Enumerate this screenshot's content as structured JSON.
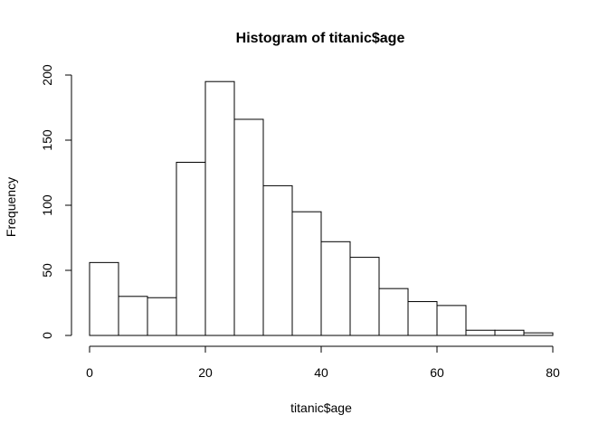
{
  "chart_data": {
    "type": "bar",
    "subtype": "histogram",
    "title": "Histogram of titanic$age",
    "xlabel": "titanic$age",
    "ylabel": "Frequency",
    "bin_edges": [
      0,
      5,
      10,
      15,
      20,
      25,
      30,
      35,
      40,
      45,
      50,
      55,
      60,
      65,
      70,
      75,
      80
    ],
    "values": [
      56,
      30,
      29,
      133,
      195,
      166,
      115,
      95,
      72,
      60,
      36,
      26,
      23,
      4,
      4,
      2
    ],
    "xlim": [
      0,
      80
    ],
    "ylim": [
      0,
      200
    ],
    "x_ticks": [
      0,
      20,
      40,
      60,
      80
    ],
    "y_ticks": [
      0,
      50,
      100,
      150,
      200
    ],
    "grid": false,
    "legend": "none",
    "bar_fill": "#ffffff",
    "bar_stroke": "#000000"
  }
}
